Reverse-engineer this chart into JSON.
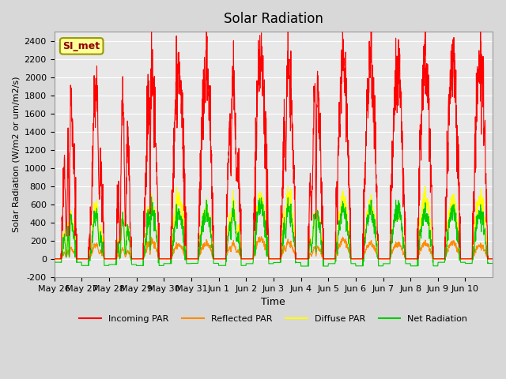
{
  "title": "Solar Radiation",
  "ylabel": "Solar Radiation (W/m2 or um/m2/s)",
  "xlabel": "Time",
  "ylim": [
    -200,
    2500
  ],
  "yticks": [
    -200,
    0,
    200,
    400,
    600,
    800,
    1000,
    1200,
    1400,
    1600,
    1800,
    2000,
    2200,
    2400
  ],
  "annotation_text": "SI_met",
  "annotation_box_color": "#FFFF99",
  "annotation_border_color": "#999900",
  "fig_bg_color": "#D8D8D8",
  "ax_bg_color": "#E8E8E8",
  "series_colors": {
    "incoming": "#FF0000",
    "reflected": "#FF8C00",
    "diffuse": "#FFFF00",
    "net": "#00CC00"
  },
  "legend_labels": [
    "Incoming PAR",
    "Reflected PAR",
    "Diffuse PAR",
    "Net Radiation"
  ],
  "x_tick_labels": [
    "May 26",
    "May 27",
    "May 28",
    "May 29",
    "May 30",
    "May 31",
    "Jun 1",
    "Jun 2",
    "Jun 3",
    "Jun 4",
    "Jun 5",
    "Jun 6",
    "Jun 7",
    "Jun 8",
    "Jun 9",
    "Jun 10"
  ],
  "num_days": 16,
  "points_per_day": 144
}
